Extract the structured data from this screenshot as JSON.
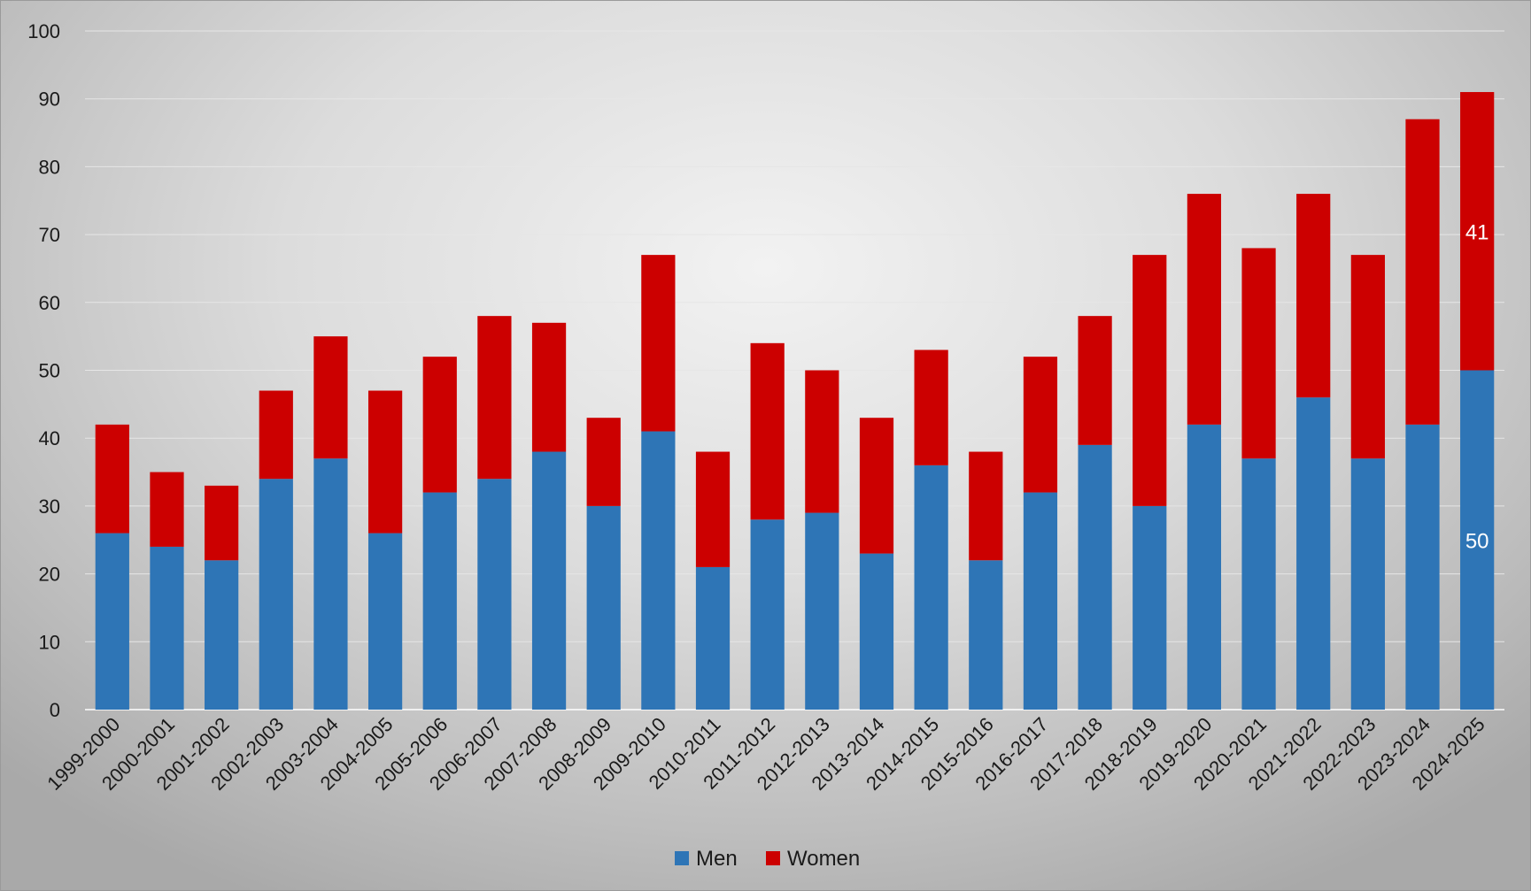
{
  "chart_data": {
    "type": "bar",
    "stacked": true,
    "categories": [
      "1999-2000",
      "2000-2001",
      "2001-2002",
      "2002-2003",
      "2003-2004",
      "2004-2005",
      "2005-2006",
      "2006-2007",
      "2007-2008",
      "2008-2009",
      "2009-2010",
      "2010-2011",
      "2011-2012",
      "2012-2013",
      "2013-2014",
      "2014-2015",
      "2015-2016",
      "2016-2017",
      "2017-2018",
      "2018-2019",
      "2019-2020",
      "2020-2021",
      "2021-2022",
      "2022-2023",
      "2023-2024",
      "2024-2025"
    ],
    "series": [
      {
        "name": "Men",
        "color": "#2e75b6",
        "values": [
          26,
          24,
          22,
          34,
          37,
          26,
          32,
          34,
          38,
          30,
          41,
          21,
          28,
          29,
          23,
          36,
          22,
          32,
          39,
          30,
          42,
          37,
          46,
          37,
          42,
          50
        ]
      },
      {
        "name": "Women",
        "color": "#cc0000",
        "values": [
          16,
          11,
          11,
          13,
          18,
          21,
          20,
          24,
          19,
          13,
          26,
          17,
          26,
          21,
          20,
          17,
          16,
          20,
          19,
          37,
          34,
          31,
          30,
          30,
          45,
          41
        ]
      }
    ],
    "data_labels": [
      {
        "category": "2024-2025",
        "series": "Men",
        "text": "50"
      },
      {
        "category": "2024-2025",
        "series": "Women",
        "text": "41"
      }
    ],
    "yticks": [
      "0",
      "10",
      "20",
      "30",
      "40",
      "50",
      "60",
      "70",
      "80",
      "90",
      "100"
    ],
    "ylim": [
      0,
      100
    ],
    "grid": true,
    "legend": "bottom-center"
  }
}
